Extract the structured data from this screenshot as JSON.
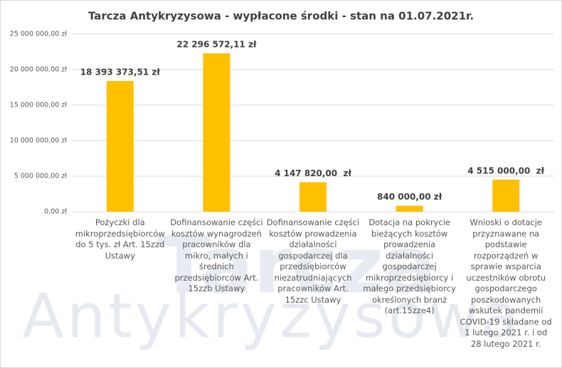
{
  "chart_data": {
    "type": "bar",
    "title": "Tarcza Antykryzysowa - wypłacone środki - stan na 01.07.2021r.",
    "watermark": [
      "Tarcza",
      "Antykryzysowa"
    ],
    "categories": [
      "Pożyczki dla mikroprzedsiębiorców do 5 tys. zł Art. 15zzd Ustawy",
      "Dofinansowanie części kosztów wynagrodzeń pracowników dla mikro, małych i średnich przedsiębiorców Art. 15zzb Ustawy",
      "Dofinansowanie części kosztów prowadzenia działalności gospodarczej dla przedsiębiorców niezatrudniających pracowników Art. 15zzc Ustawy",
      "Dotacja na pokrycie bieżących kosztów prowadzenia działalności gospodarczej mikroprzedsiębiorcy i małego przedsiębiorcy określonych branż (art.15zze4)",
      "Wnioski o dotacje przyznawane na podstawie rozporządzeń w sprawie wsparcia uczestników obrotu gospodarczego poszkodowanych wskutek pandemii COVID-19 składane od 1 lutego 2021 r. i od 28 lutego 2021 r."
    ],
    "values": [
      18393373.51,
      22296572.11,
      4147820,
      840000,
      4515000
    ],
    "value_labels": [
      "18 393 373,51 zł",
      "22 296 572,11 zł",
      "4 147 820,00  zł",
      "840 000,00 zł",
      "4 515 000,00  zł"
    ],
    "color": "#ffc000",
    "ylim": [
      0,
      25000000
    ],
    "yticks": [
      {
        "value": 0,
        "label": "0,00 zł"
      },
      {
        "value": 5000000,
        "label": "5 000 000,00 zł"
      },
      {
        "value": 10000000,
        "label": "10 000 000,00 zł"
      },
      {
        "value": 15000000,
        "label": "15 000 000,00 zł"
      },
      {
        "value": 20000000,
        "label": "20 000 000,00 zł"
      },
      {
        "value": 25000000,
        "label": "25 000 000,00 zł"
      }
    ],
    "grid": true
  }
}
